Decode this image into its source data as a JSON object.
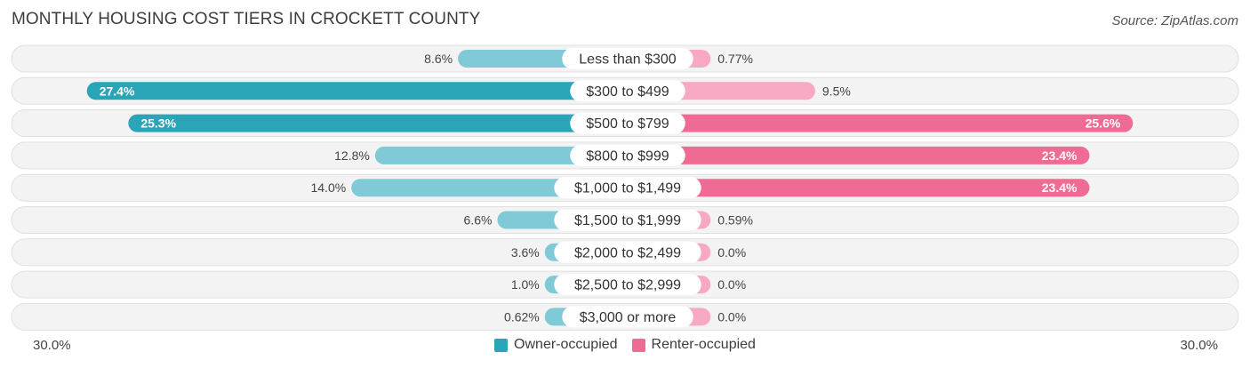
{
  "header": {
    "title": "MONTHLY HOUSING COST TIERS IN CROCKETT COUNTY",
    "source": "Source: ZipAtlas.com"
  },
  "axis": {
    "left_label": "30.0%",
    "right_label": "30.0%"
  },
  "legend": {
    "owner_label": "Owner-occupied",
    "renter_label": "Renter-occupied"
  },
  "colors": {
    "owner": "#2aa5b8",
    "owner_light": "#7fcad6",
    "renter": "#f06b94",
    "renter_light": "#f7a8c2",
    "row_bg": "#f3f3f3",
    "row_border": "#e0e0e0"
  },
  "chart_data": {
    "type": "bar",
    "orientation": "horizontal-diverging",
    "title": "MONTHLY HOUSING COST TIERS IN CROCKETT COUNTY",
    "xlim": [
      -30,
      30
    ],
    "categories": [
      "Less than $300",
      "$300 to $499",
      "$500 to $799",
      "$800 to $999",
      "$1,000 to $1,499",
      "$1,500 to $1,999",
      "$2,000 to $2,499",
      "$2,500 to $2,999",
      "$3,000 or more"
    ],
    "series": [
      {
        "name": "Owner-occupied",
        "values": [
          8.6,
          27.4,
          25.3,
          12.8,
          14.0,
          6.6,
          3.6,
          1.0,
          0.62
        ],
        "labels": [
          "8.6%",
          "27.4%",
          "25.3%",
          "12.8%",
          "14.0%",
          "6.6%",
          "3.6%",
          "1.0%",
          "0.62%"
        ]
      },
      {
        "name": "Renter-occupied",
        "values": [
          0.77,
          9.5,
          25.6,
          23.4,
          23.4,
          0.59,
          0.0,
          0.0,
          0.0
        ],
        "labels": [
          "0.77%",
          "9.5%",
          "25.6%",
          "23.4%",
          "23.4%",
          "0.59%",
          "0.0%",
          "0.0%",
          "0.0%"
        ]
      }
    ],
    "legend_position": "bottom"
  }
}
